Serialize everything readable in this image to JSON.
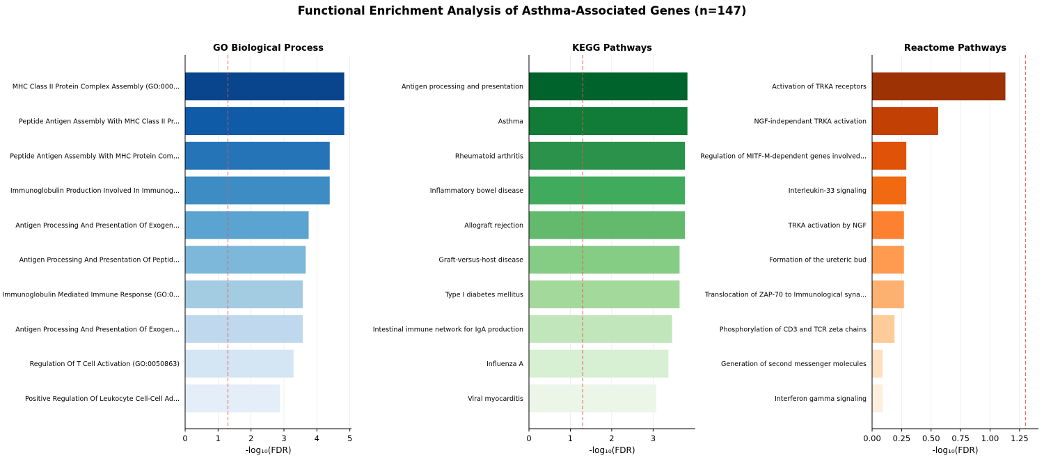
{
  "chart_data": {
    "title": "Functional Enrichment Analysis of Asthma-Associated Genes (n=147)",
    "panels": [
      {
        "type": "bar",
        "orientation": "horizontal",
        "title": "GO Biological Process",
        "xlabel": "-log₁₀(FDR)",
        "xlim": [
          0,
          5.05
        ],
        "xticks": [
          0,
          1,
          2,
          3,
          4,
          5
        ],
        "xtick_labels": [
          "0",
          "1",
          "2",
          "3",
          "4",
          "5"
        ],
        "threshold": 1.3,
        "grid": true,
        "colormap": "Blues",
        "categories": [
          "MHC Class II Protein Complex Assembly (GO:000...",
          "Peptide Antigen Assembly With MHC Class II Pr...",
          "Peptide Antigen Assembly With MHC Protein Com...",
          "Immunoglobulin Production Involved In Immunog...",
          "Antigen Processing And Presentation Of Exogen...",
          "Antigen Processing And Presentation Of Peptid...",
          "Immunoglobulin Mediated Immune Response (GO:0...",
          "Antigen Processing And Presentation Of Exogen...",
          "Regulation Of T Cell Activation (GO:0050863)",
          "Positive Regulation Of Leukocyte Cell-Cell Ad..."
        ],
        "values": [
          4.83,
          4.83,
          4.39,
          4.39,
          3.75,
          3.66,
          3.57,
          3.57,
          3.29,
          2.88
        ],
        "colors": [
          "#08458c",
          "#0f5ba8",
          "#2674b8",
          "#3d8dc4",
          "#5ba3d0",
          "#7db8da",
          "#a3cbe2",
          "#c0d8ee",
          "#d4e5f4",
          "#e4eef8"
        ]
      },
      {
        "type": "bar",
        "orientation": "horizontal",
        "title": "KEGG Pathways",
        "xlabel": "-log₁₀(FDR)",
        "xlim": [
          0,
          4.02
        ],
        "xticks": [
          0,
          1,
          2,
          3
        ],
        "xtick_labels": [
          "0",
          "1",
          "2",
          "3"
        ],
        "threshold": 1.3,
        "grid": true,
        "colormap": "Greens",
        "categories": [
          "Antigen processing and presentation",
          "Asthma",
          "Rheumatoid arthritis",
          "Inflammatory bowel disease",
          "Allograft rejection",
          "Graft-versus-host disease",
          "Type I diabetes mellitus",
          "Intestinal immune network for IgA production",
          "Influenza A",
          "Viral myocarditis"
        ],
        "values": [
          3.83,
          3.83,
          3.77,
          3.77,
          3.77,
          3.64,
          3.64,
          3.46,
          3.37,
          3.08
        ],
        "colors": [
          "#00632c",
          "#117b38",
          "#2a924a",
          "#41ab5d",
          "#63ba6d",
          "#85cc84",
          "#a4d99c",
          "#c2e6bb",
          "#d7efd2",
          "#ebf6e8"
        ]
      },
      {
        "type": "bar",
        "orientation": "horizontal",
        "title": "Reactome Pathways",
        "xlabel": "-log₁₀(FDR)",
        "xlim": [
          0,
          1.41
        ],
        "xticks": [
          0,
          0.25,
          0.5,
          0.75,
          1,
          1.25
        ],
        "xtick_labels": [
          "0.00",
          "0.25",
          "0.50",
          "0.75",
          "1.00",
          "1.25"
        ],
        "threshold": 1.3,
        "grid": true,
        "colormap": "Oranges",
        "categories": [
          "Activation of TRKA receptors",
          "NGF-independant TRKA activation",
          "Regulation of MITF-M-dependent genes involved...",
          "Interleukin-33 signaling",
          "TRKA activation by NGF",
          "Formation of the ureteric bud",
          "Translocation of ZAP-70 to Immunological syna...",
          "Phosphorylation of CD3 and TCR zeta chains",
          "Generation of second messenger molecules",
          "Interferon gamma signaling"
        ],
        "values": [
          1.13,
          0.56,
          0.29,
          0.29,
          0.27,
          0.27,
          0.27,
          0.19,
          0.09,
          0.09
        ],
        "colors": [
          "#9d3204",
          "#c24004",
          "#e05208",
          "#f16a12",
          "#fd8130",
          "#fe9b50",
          "#fdb171",
          "#fdcc98",
          "#fee0c0",
          "#feeedd"
        ]
      }
    ]
  }
}
